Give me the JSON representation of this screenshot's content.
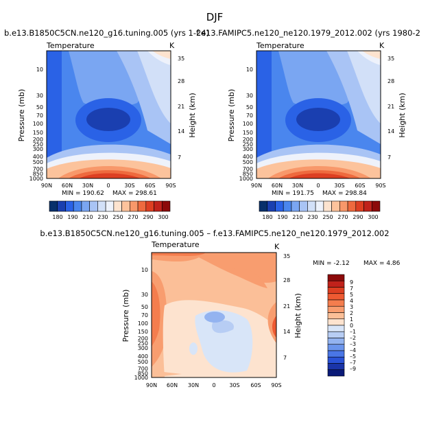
{
  "page": {
    "season": "DJF"
  },
  "chart_data": [
    {
      "type": "heatmap",
      "title": "b.e13.B1850C5CN.ne120_g16.tuning.005 (yrs 1-24)",
      "subtitle": "Temperature",
      "units": "K",
      "ylabel": "Pressure (mb)",
      "y2label": "Height (km)",
      "xlabel": "",
      "x_ticks": [
        "90N",
        "60N",
        "30N",
        "0",
        "30S",
        "60S",
        "90S"
      ],
      "y_ticks": [
        "10",
        "30",
        "50",
        "70",
        "100",
        "150",
        "200",
        "250",
        "300",
        "400",
        "500",
        "700",
        "850",
        "1000"
      ],
      "y2_ticks": [
        "35",
        "28",
        "21",
        "14",
        "7"
      ],
      "min_label": "MIN = 190.62",
      "max_label": "MAX = 298.61",
      "min": 190.62,
      "max": 298.61
    },
    {
      "type": "heatmap",
      "title": "f.e13.FAMIPC5.ne120_ne120.1979_2012.002 (yrs 1980-2",
      "subtitle": "Temperature",
      "units": "K",
      "ylabel": "Pressure (mb)",
      "y2label": "Height (km)",
      "x_ticks": [
        "90N",
        "60N",
        "30N",
        "0",
        "30S",
        "60S",
        "90S"
      ],
      "y_ticks": [
        "10",
        "30",
        "50",
        "70",
        "100",
        "150",
        "200",
        "250",
        "300",
        "400",
        "500",
        "700",
        "850",
        "1000"
      ],
      "y2_ticks": [
        "35",
        "28",
        "21",
        "14",
        "7"
      ],
      "min_label": "MIN = 191.75",
      "max_label": "MAX = 298.84",
      "min": 191.75,
      "max": 298.84
    },
    {
      "type": "heatmap",
      "title": "b.e13.B1850C5CN.ne120_g16.tuning.005 – f.e13.FAMIPC5.ne120_ne120.1979_2012.002",
      "subtitle": "Temperature",
      "units": "K",
      "ylabel": "Pressure (mb)",
      "y2label": "Height (km)",
      "x_ticks": [
        "90N",
        "60N",
        "30N",
        "0",
        "30S",
        "60S",
        "90S"
      ],
      "y_ticks": [
        "10",
        "30",
        "50",
        "70",
        "100",
        "150",
        "200",
        "250",
        "300",
        "400",
        "500",
        "700",
        "850",
        "1000"
      ],
      "y2_ticks": [
        "35",
        "28",
        "21",
        "14",
        "7"
      ],
      "min_label": "MIN = -2.12",
      "max_label": "MAX = 4.86",
      "min": -2.12,
      "max": 4.86
    }
  ],
  "colorbars": {
    "absolute": {
      "labels": [
        "180",
        "190",
        "210",
        "230",
        "250",
        "270",
        "290",
        "300"
      ],
      "colors": [
        "#08306b",
        "#1a3fb0",
        "#2a62e6",
        "#4a86ee",
        "#7aa6f2",
        "#a9c4f5",
        "#d2e0f8",
        "#eef2fb",
        "#fde3cf",
        "#fcc39c",
        "#f8986a",
        "#ee6a3e",
        "#dd3f22",
        "#c0221b",
        "#8c0a0a"
      ]
    },
    "difference": {
      "labels": [
        "9",
        "7",
        "5",
        "4",
        "3",
        "2",
        "1",
        "0",
        "–1",
        "–2",
        "–3",
        "–4",
        "–5",
        "–7",
        "–9"
      ],
      "colors": [
        "#8c0a0a",
        "#c0221b",
        "#dd3f22",
        "#ee5a32",
        "#f47d4e",
        "#f89d6f",
        "#fbbf98",
        "#fde3cf",
        "#d8e5f8",
        "#b7cdf4",
        "#93b3f0",
        "#6b95ec",
        "#4a76e6",
        "#2a52d6",
        "#1a34a8",
        "#0a1a78"
      ]
    }
  }
}
